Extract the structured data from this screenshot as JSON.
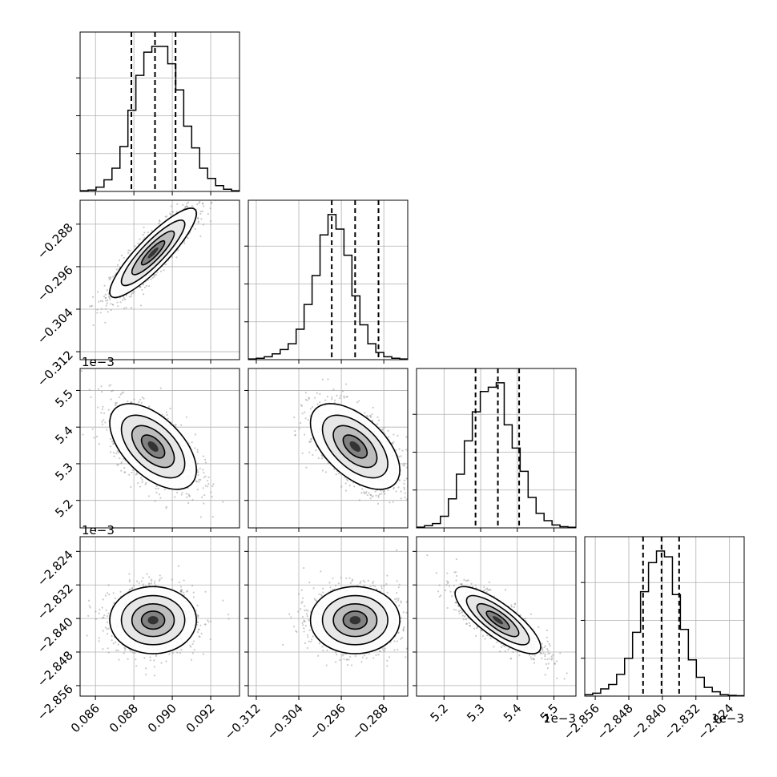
{
  "chart_data": {
    "type": "corner",
    "n_params": 4,
    "quantiles": [
      0.16,
      0.5,
      0.84
    ],
    "grid": true,
    "params": [
      {
        "range": [
          0.0852,
          0.0935
        ],
        "ticks": [
          "0.086",
          "0.088",
          "0.090",
          "0.092"
        ],
        "tick_values": [
          0.086,
          0.088,
          0.09,
          0.092
        ],
        "offset_text": "",
        "mean": 0.089,
        "sd": 0.0011,
        "quantile_values": [
          0.08787,
          0.0891,
          0.09017
        ],
        "hist": [
          0.005,
          0.01,
          0.03,
          0.08,
          0.16,
          0.31,
          0.56,
          0.8,
          0.96,
          1.0,
          1.0,
          0.88,
          0.7,
          0.45,
          0.3,
          0.16,
          0.09,
          0.04,
          0.015,
          0.005
        ]
      },
      {
        "range": [
          -0.3135,
          -0.2835
        ],
        "ticks": [
          "−0.312",
          "−0.304",
          "−0.296",
          "−0.288"
        ],
        "tick_values": [
          -0.312,
          -0.304,
          -0.296,
          -0.288
        ],
        "offset_text": "",
        "mean": -0.2934,
        "sd": 0.0041,
        "quantile_values": [
          -0.2978,
          -0.2934,
          -0.289
        ],
        "hist": [
          0.005,
          0.01,
          0.02,
          0.04,
          0.07,
          0.11,
          0.21,
          0.38,
          0.58,
          0.86,
          1.0,
          0.9,
          0.72,
          0.44,
          0.24,
          0.11,
          0.05,
          0.02,
          0.01,
          0.005
        ]
      },
      {
        "range": [
          5.125,
          5.56
        ],
        "ticks": [
          "5.2",
          "5.3",
          "5.4",
          "5.5"
        ],
        "tick_values": [
          5.2,
          5.3,
          5.4,
          5.5
        ],
        "offset_text": "1e−3",
        "mean": 5.347,
        "sd": 0.057,
        "quantile_values": [
          5.286,
          5.347,
          5.405
        ],
        "hist": [
          0.005,
          0.015,
          0.03,
          0.08,
          0.2,
          0.37,
          0.6,
          0.8,
          0.94,
          0.97,
          1.0,
          0.71,
          0.55,
          0.39,
          0.21,
          0.1,
          0.05,
          0.02,
          0.008,
          0.004
        ]
      },
      {
        "range": [
          -2.8585,
          -2.8205
        ],
        "ticks": [
          "−2.856",
          "−2.848",
          "−2.840",
          "−2.832",
          "−2.824"
        ],
        "tick_values": [
          -2.856,
          -2.848,
          -2.84,
          -2.832,
          -2.824
        ],
        "offset_text": "1e−3",
        "mean": -2.8404,
        "sd": 0.0039,
        "quantile_values": [
          -2.8446,
          -2.8402,
          -2.836
        ],
        "hist": [
          0.01,
          0.02,
          0.05,
          0.08,
          0.15,
          0.26,
          0.44,
          0.72,
          0.92,
          1.0,
          0.96,
          0.7,
          0.46,
          0.25,
          0.13,
          0.06,
          0.03,
          0.01,
          0.005,
          0.003
        ]
      }
    ],
    "correlations": [
      {
        "pair": [
          1,
          0
        ],
        "rho": 0.88
      },
      {
        "pair": [
          2,
          0
        ],
        "rho": -0.55
      },
      {
        "pair": [
          2,
          1
        ],
        "rho": -0.55
      },
      {
        "pair": [
          3,
          0
        ],
        "rho": 0.0
      },
      {
        "pair": [
          3,
          1
        ],
        "rho": 0.0
      },
      {
        "pair": [
          3,
          2
        ],
        "rho": -0.8
      }
    ],
    "contour_levels_sigma": [
      0.5,
      1.0,
      1.5,
      2.0
    ]
  }
}
